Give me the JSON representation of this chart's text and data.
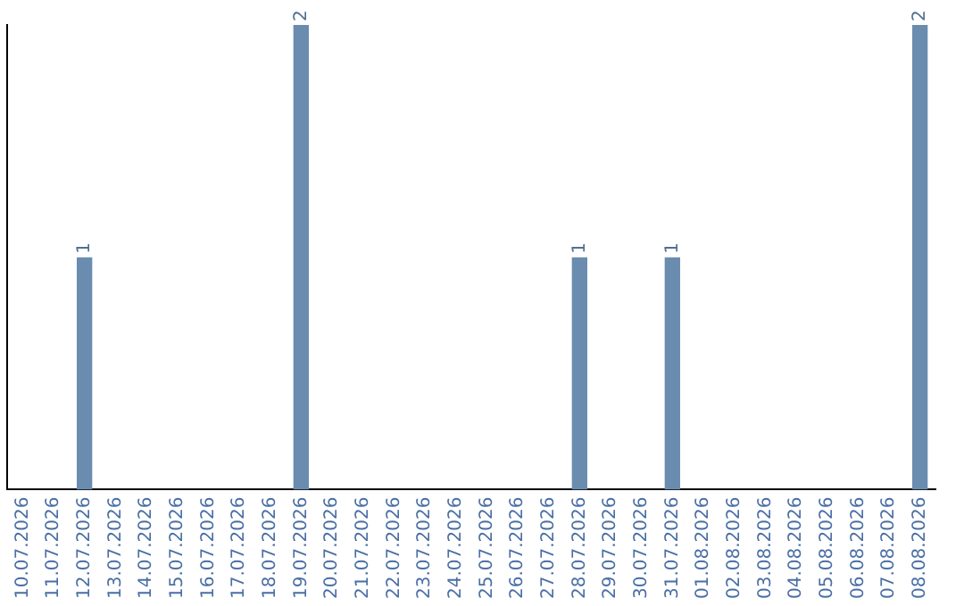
{
  "chart_data": {
    "type": "bar",
    "categories": [
      "10.07.2026",
      "11.07.2026",
      "12.07.2026",
      "13.07.2026",
      "14.07.2026",
      "15.07.2026",
      "16.07.2026",
      "17.07.2026",
      "18.07.2026",
      "19.07.2026",
      "20.07.2026",
      "21.07.2026",
      "22.07.2026",
      "23.07.2026",
      "24.07.2026",
      "25.07.2026",
      "26.07.2026",
      "27.07.2026",
      "28.07.2026",
      "29.07.2026",
      "30.07.2026",
      "31.07.2026",
      "01.08.2026",
      "02.08.2026",
      "03.08.2026",
      "04.08.2026",
      "05.08.2026",
      "06.08.2026",
      "07.08.2026",
      "08.08.2026"
    ],
    "values": [
      0,
      0,
      1,
      0,
      0,
      0,
      0,
      0,
      0,
      2,
      0,
      0,
      0,
      0,
      0,
      0,
      0,
      0,
      1,
      0,
      0,
      1,
      0,
      0,
      0,
      0,
      0,
      0,
      0,
      2
    ],
    "value_labels": [
      null,
      null,
      "1",
      null,
      null,
      null,
      null,
      null,
      null,
      "2",
      null,
      null,
      null,
      null,
      null,
      null,
      null,
      null,
      "1",
      null,
      null,
      "1",
      null,
      null,
      null,
      null,
      null,
      null,
      null,
      "2"
    ],
    "color": "#6a8caf",
    "ylim": [
      0,
      2
    ],
    "tick_labels": "x",
    "grid": false,
    "legend": false
  }
}
